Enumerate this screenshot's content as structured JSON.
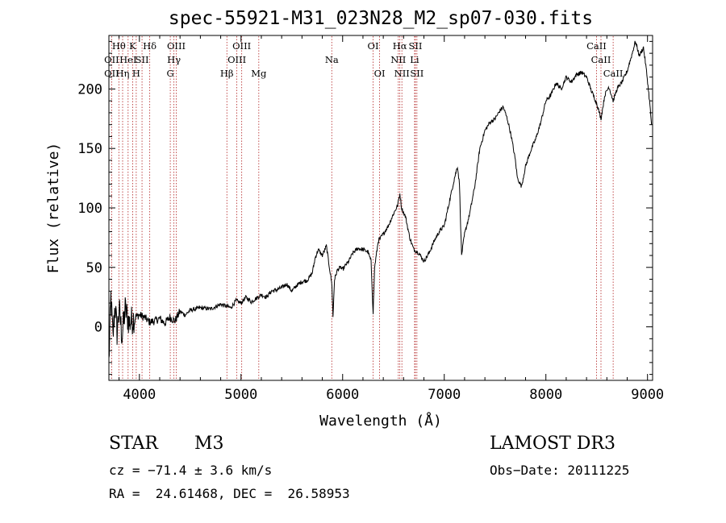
{
  "chart_data": {
    "type": "line",
    "title": "spec-55921-M31_023N28_M2_sp07-030.fits",
    "xlabel": "Wavelength (Å)",
    "ylabel": "Flux (relative)",
    "xlim": [
      3700,
      9050
    ],
    "ylim": [
      -45,
      245
    ],
    "x_ticks": [
      4000,
      5000,
      6000,
      7000,
      8000,
      9000
    ],
    "y_ticks": [
      0,
      50,
      100,
      150,
      200
    ],
    "x_tick_labels": [
      "4000",
      "5000",
      "6000",
      "7000",
      "8000",
      "9000"
    ],
    "y_tick_labels": [
      "0",
      "50",
      "100",
      "150",
      "200"
    ],
    "series": [
      {
        "name": "spectrum",
        "color": "#000000",
        "anchors": [
          [
            3700,
            -30
          ],
          [
            3720,
            25
          ],
          [
            3740,
            -10
          ],
          [
            3760,
            20
          ],
          [
            3780,
            -5
          ],
          [
            3800,
            15
          ],
          [
            3830,
            -8
          ],
          [
            3860,
            15
          ],
          [
            3900,
            3
          ],
          [
            3950,
            8
          ],
          [
            4000,
            10
          ],
          [
            4050,
            8
          ],
          [
            4100,
            4
          ],
          [
            4150,
            5
          ],
          [
            4200,
            7
          ],
          [
            4250,
            3
          ],
          [
            4300,
            8
          ],
          [
            4350,
            5
          ],
          [
            4400,
            13
          ],
          [
            4450,
            10
          ],
          [
            4500,
            14
          ],
          [
            4600,
            16
          ],
          [
            4700,
            15
          ],
          [
            4800,
            19
          ],
          [
            4900,
            16
          ],
          [
            4950,
            22
          ],
          [
            5000,
            20
          ],
          [
            5050,
            25
          ],
          [
            5100,
            21
          ],
          [
            5150,
            24
          ],
          [
            5200,
            27
          ],
          [
            5250,
            25
          ],
          [
            5300,
            30
          ],
          [
            5350,
            31
          ],
          [
            5400,
            33
          ],
          [
            5450,
            36
          ],
          [
            5500,
            30
          ],
          [
            5550,
            35
          ],
          [
            5600,
            38
          ],
          [
            5650,
            39
          ],
          [
            5700,
            45
          ],
          [
            5730,
            58
          ],
          [
            5760,
            65
          ],
          [
            5800,
            60
          ],
          [
            5840,
            68
          ],
          [
            5870,
            50
          ],
          [
            5895,
            35
          ],
          [
            5905,
            8
          ],
          [
            5920,
            40
          ],
          [
            5950,
            48
          ],
          [
            5980,
            50
          ],
          [
            6000,
            48
          ],
          [
            6030,
            52
          ],
          [
            6060,
            55
          ],
          [
            6100,
            62
          ],
          [
            6150,
            66
          ],
          [
            6200,
            65
          ],
          [
            6250,
            63
          ],
          [
            6280,
            55
          ],
          [
            6300,
            12
          ],
          [
            6315,
            50
          ],
          [
            6350,
            72
          ],
          [
            6400,
            78
          ],
          [
            6450,
            85
          ],
          [
            6500,
            95
          ],
          [
            6540,
            102
          ],
          [
            6563,
            112
          ],
          [
            6580,
            100
          ],
          [
            6620,
            92
          ],
          [
            6660,
            75
          ],
          [
            6700,
            65
          ],
          [
            6750,
            62
          ],
          [
            6800,
            55
          ],
          [
            6850,
            62
          ],
          [
            6900,
            72
          ],
          [
            6950,
            80
          ],
          [
            7000,
            85
          ],
          [
            7050,
            105
          ],
          [
            7100,
            125
          ],
          [
            7130,
            135
          ],
          [
            7150,
            120
          ],
          [
            7170,
            60
          ],
          [
            7200,
            78
          ],
          [
            7250,
            95
          ],
          [
            7300,
            118
          ],
          [
            7350,
            150
          ],
          [
            7400,
            165
          ],
          [
            7450,
            172
          ],
          [
            7500,
            175
          ],
          [
            7550,
            182
          ],
          [
            7580,
            185
          ],
          [
            7620,
            175
          ],
          [
            7660,
            160
          ],
          [
            7700,
            140
          ],
          [
            7720,
            125
          ],
          [
            7760,
            118
          ],
          [
            7800,
            135
          ],
          [
            7850,
            148
          ],
          [
            7900,
            158
          ],
          [
            7950,
            172
          ],
          [
            8000,
            190
          ],
          [
            8050,
            195
          ],
          [
            8100,
            205
          ],
          [
            8150,
            200
          ],
          [
            8200,
            210
          ],
          [
            8250,
            206
          ],
          [
            8300,
            212
          ],
          [
            8350,
            214
          ],
          [
            8400,
            210
          ],
          [
            8450,
            198
          ],
          [
            8500,
            188
          ],
          [
            8542,
            175
          ],
          [
            8580,
            195
          ],
          [
            8620,
            202
          ],
          [
            8662,
            190
          ],
          [
            8700,
            200
          ],
          [
            8750,
            206
          ],
          [
            8800,
            215
          ],
          [
            8850,
            230
          ],
          [
            8880,
            240
          ],
          [
            8920,
            228
          ],
          [
            8960,
            235
          ],
          [
            8990,
            215
          ],
          [
            9020,
            190
          ],
          [
            9040,
            170
          ]
        ]
      }
    ],
    "line_marker_color": "#b22222",
    "spectral_lines": [
      {
        "wavelength": 3727,
        "label": "OII",
        "row": 2
      },
      {
        "wavelength": 3727,
        "label": "OII",
        "row": 3
      },
      {
        "wavelength": 3798,
        "label": "Hθ",
        "row": 1
      },
      {
        "wavelength": 3835,
        "label": "Hη",
        "row": 3
      },
      {
        "wavelength": 3889,
        "label": "HeI",
        "row": 2
      },
      {
        "wavelength": 3934,
        "label": "K",
        "row": 1
      },
      {
        "wavelength": 3969,
        "label": "H",
        "row": 3
      },
      {
        "wavelength": 4026,
        "label": "SII",
        "row": 2
      },
      {
        "wavelength": 4102,
        "label": "Hδ",
        "row": 1
      },
      {
        "wavelength": 4304,
        "label": "G",
        "row": 3
      },
      {
        "wavelength": 4340,
        "label": "Hγ",
        "row": 2
      },
      {
        "wavelength": 4363,
        "label": "OIII",
        "row": 1
      },
      {
        "wavelength": 4861,
        "label": "Hβ",
        "row": 3
      },
      {
        "wavelength": 4959,
        "label": "OIII",
        "row": 2
      },
      {
        "wavelength": 5007,
        "label": "OIII",
        "row": 1
      },
      {
        "wavelength": 5175,
        "label": "Mg",
        "row": 3
      },
      {
        "wavelength": 5893,
        "label": "Na",
        "row": 2
      },
      {
        "wavelength": 6300,
        "label": "OI",
        "row": 1
      },
      {
        "wavelength": 6364,
        "label": "OI",
        "row": 3
      },
      {
        "wavelength": 6548,
        "label": "NII",
        "row": 2
      },
      {
        "wavelength": 6563,
        "label": "Hα",
        "row": 1
      },
      {
        "wavelength": 6583,
        "label": "NII",
        "row": 3
      },
      {
        "wavelength": 6708,
        "label": "Li",
        "row": 2
      },
      {
        "wavelength": 6716,
        "label": "SII",
        "row": 1
      },
      {
        "wavelength": 6731,
        "label": "SII",
        "row": 3
      },
      {
        "wavelength": 8498,
        "label": "CaII",
        "row": 1
      },
      {
        "wavelength": 8542,
        "label": "CaII",
        "row": 2
      },
      {
        "wavelength": 8662,
        "label": "CaII",
        "row": 3
      }
    ]
  },
  "info": {
    "class": "STAR",
    "subclass": "M3",
    "cz": "cz = −71.4 ± 3.6 km/s",
    "coords": "RA =  24.61468, DEC =  26.58953",
    "survey": "LAMOST DR3",
    "obs_date": "Obs−Date: 20111225"
  }
}
